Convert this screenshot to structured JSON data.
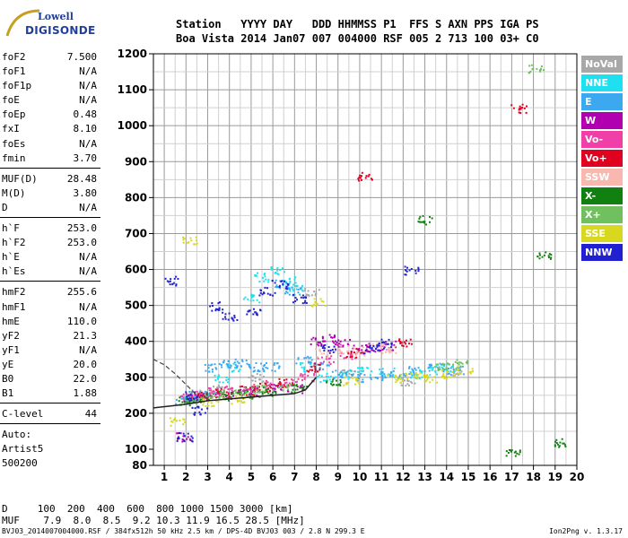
{
  "logo": {
    "line1": "Lowell",
    "line2": "DIGISONDE"
  },
  "header": {
    "labels": "Station   YYYY DAY   DDD HHMMSS P1  FFS S AXN PPS IGA PS",
    "values": "Boa Vista 2014 Jan07 007 004000 RSF 005 2 713 100 03+ C0"
  },
  "params": {
    "group1": [
      {
        "label": "foF2",
        "value": "7.500"
      },
      {
        "label": "foF1",
        "value": "N/A"
      },
      {
        "label": "foF1p",
        "value": "N/A"
      },
      {
        "label": "foE",
        "value": "N/A"
      },
      {
        "label": "foEp",
        "value": "0.48"
      },
      {
        "label": "fxI",
        "value": "8.10"
      },
      {
        "label": "foEs",
        "value": "N/A"
      },
      {
        "label": "fmin",
        "value": "3.70"
      }
    ],
    "group2": [
      {
        "label": "MUF(D)",
        "value": "28.48"
      },
      {
        "label": "M(D)",
        "value": "3.80"
      },
      {
        "label": "D",
        "value": "N/A"
      }
    ],
    "group3": [
      {
        "label": "h`F",
        "value": "253.0"
      },
      {
        "label": "h`F2",
        "value": "253.0"
      },
      {
        "label": "h`E",
        "value": "N/A"
      },
      {
        "label": "h`Es",
        "value": "N/A"
      }
    ],
    "group4": [
      {
        "label": "hmF2",
        "value": "255.6"
      },
      {
        "label": "hmF1",
        "value": "N/A"
      },
      {
        "label": "hmE",
        "value": "110.0"
      },
      {
        "label": "yF2",
        "value": "21.3"
      },
      {
        "label": "yF1",
        "value": "N/A"
      },
      {
        "label": "yE",
        "value": "20.0"
      },
      {
        "label": "B0",
        "value": "22.0"
      },
      {
        "label": "B1",
        "value": "1.88"
      }
    ],
    "group5": [
      {
        "label": "C-level",
        "value": "44"
      }
    ]
  },
  "auto": {
    "line1": "Auto:",
    "line2": "Artist5",
    "line3": "500200"
  },
  "legend": [
    {
      "name": "NoVal",
      "color": "#a8a8a8"
    },
    {
      "name": "NNE",
      "color": "#1ee0f0"
    },
    {
      "name": "E",
      "color": "#3ca8f0"
    },
    {
      "name": "W",
      "color": "#b000b0"
    },
    {
      "name": "Vo-",
      "color": "#f040a8"
    },
    {
      "name": "Vo+",
      "color": "#e00020"
    },
    {
      "name": "SSW",
      "color": "#f8b8b0"
    },
    {
      "name": "X-",
      "color": "#108010"
    },
    {
      "name": "X+",
      "color": "#70c060"
    },
    {
      "name": "SSE",
      "color": "#d8d820"
    },
    {
      "name": "NNW",
      "color": "#2020d0"
    }
  ],
  "chart_data": {
    "type": "scatter",
    "xlim": [
      0.5,
      20
    ],
    "ylim": [
      80,
      1200
    ],
    "x_ticks": [
      "1",
      "2",
      "3",
      "4",
      "5",
      "6",
      "7",
      "8",
      "9",
      "10",
      "11",
      "12",
      "13",
      "14",
      "15",
      "16",
      "17",
      "18",
      "19",
      "20"
    ],
    "y_ticks": [
      "80",
      "100",
      "200",
      "300",
      "400",
      "500",
      "600",
      "700",
      "800",
      "900",
      "1000",
      "1100",
      "1200"
    ],
    "grid": true,
    "legend_position": "right",
    "series": [
      {
        "name": "NoVal",
        "color": "#a8a8a8",
        "x": [
          2.5,
          3.5,
          5.2,
          7.8,
          9.5,
          12.2,
          14.3
        ],
        "y": [
          255,
          270,
          300,
          540,
          310,
          290,
          320
        ]
      },
      {
        "name": "NNE",
        "color": "#1ee0f0",
        "x": [
          2.2,
          3.0,
          3.6,
          4.2,
          5.0,
          5.5,
          6.2,
          6.8,
          7.0,
          7.6,
          8.3,
          9.2,
          10.2,
          11.2,
          12.6,
          13.4,
          14.2
        ],
        "y": [
          240,
          250,
          300,
          330,
          520,
          580,
          600,
          570,
          550,
          330,
          300,
          310,
          320,
          315,
          310,
          320,
          330
        ]
      },
      {
        "name": "E",
        "color": "#3ca8f0",
        "x": [
          1.8,
          2.4,
          3.2,
          3.9,
          4.6,
          5.3,
          5.9,
          6.4,
          6.9,
          7.4,
          8.2,
          9.0,
          9.9,
          10.8,
          11.7,
          12.6,
          13.5,
          14.4
        ],
        "y": [
          235,
          250,
          330,
          340,
          340,
          330,
          330,
          560,
          540,
          350,
          330,
          310,
          300,
          305,
          310,
          320,
          330,
          320
        ]
      },
      {
        "name": "W",
        "color": "#b000b0",
        "x": [
          1.9,
          2.3,
          2.7,
          3.5,
          4.4,
          5.2,
          6.1,
          7.0,
          8.0,
          8.6,
          9.2,
          10.0,
          10.6,
          11.3
        ],
        "y": [
          135,
          245,
          250,
          255,
          260,
          260,
          270,
          270,
          400,
          410,
          395,
          380,
          385,
          390
        ]
      },
      {
        "name": "Vo-",
        "color": "#f040a8",
        "x": [
          2.1,
          2.8,
          3.3,
          4.1,
          4.9,
          6.0,
          6.7,
          7.5,
          8.4,
          9.4
        ],
        "y": [
          245,
          255,
          260,
          265,
          270,
          280,
          285,
          300,
          350,
          365
        ]
      },
      {
        "name": "Vo+",
        "color": "#e00020",
        "x": [
          2.6,
          3.7,
          4.8,
          5.6,
          6.5,
          7.9,
          9.7,
          10.2,
          12.1,
          17.3
        ],
        "y": [
          250,
          258,
          265,
          275,
          285,
          330,
          370,
          860,
          400,
          1050
        ]
      },
      {
        "name": "SSW",
        "color": "#f8b8b0",
        "x": [
          8.3,
          9.1,
          9.9,
          10.7,
          11.3
        ],
        "y": [
          370,
          380,
          375,
          385,
          380
        ]
      },
      {
        "name": "X-",
        "color": "#108010",
        "x": [
          2.0,
          2.9,
          3.8,
          4.7,
          5.8,
          7.2,
          8.8,
          13.0,
          17.0,
          18.5,
          19.2
        ],
        "y": [
          235,
          245,
          250,
          255,
          262,
          270,
          290,
          740,
          95,
          640,
          120
        ]
      },
      {
        "name": "X+",
        "color": "#70c060",
        "x": [
          2.4,
          3.4,
          4.5,
          5.4,
          6.6,
          13.8,
          14.6,
          18.1
        ],
        "y": [
          240,
          255,
          262,
          268,
          276,
          330,
          340,
          1160
        ]
      },
      {
        "name": "SSE",
        "color": "#d8d820",
        "x": [
          1.6,
          2.1,
          3.1,
          4.3,
          8.1,
          9.6,
          11.6,
          12.4,
          13.2,
          14.1,
          14.8
        ],
        "y": [
          180,
          680,
          230,
          240,
          510,
          290,
          300,
          305,
          300,
          310,
          320
        ]
      },
      {
        "name": "NNW",
        "color": "#2020d0",
        "x": [
          1.3,
          1.9,
          2.2,
          2.6,
          3.4,
          4.0,
          5.1,
          5.7,
          6.3,
          7.2,
          8.5,
          10.5,
          11.1,
          12.3
        ],
        "y": [
          570,
          135,
          250,
          210,
          500,
          470,
          480,
          540,
          560,
          520,
          380,
          380,
          395,
          600
        ]
      }
    ],
    "trace_solid": {
      "x": [
        0.5,
        2.0,
        3.0,
        4.0,
        5.0,
        6.0,
        7.0,
        7.5,
        8.0
      ],
      "y": [
        215,
        225,
        235,
        240,
        245,
        250,
        255,
        265,
        300
      ]
    },
    "trace_dashed": {
      "x": [
        0.5,
        1.0,
        1.5,
        2.0,
        2.5
      ],
      "y": [
        350,
        335,
        310,
        280,
        250
      ]
    }
  },
  "footer": {
    "d_row": "D     100  200  400  600  800 1000 1500 3000 [km]",
    "muf_row": "MUF    7.9  8.0  8.5  9.2 10.3 11.9 16.5 28.5 [MHz]",
    "file_info": "BVJ03_2014007004000.RSF / 384fx512h 50 kHz 2.5 km / DPS-4D BVJ03 003 / 2.8 N 299.3 E",
    "version": "Ion2Png v. 1.3.17"
  }
}
